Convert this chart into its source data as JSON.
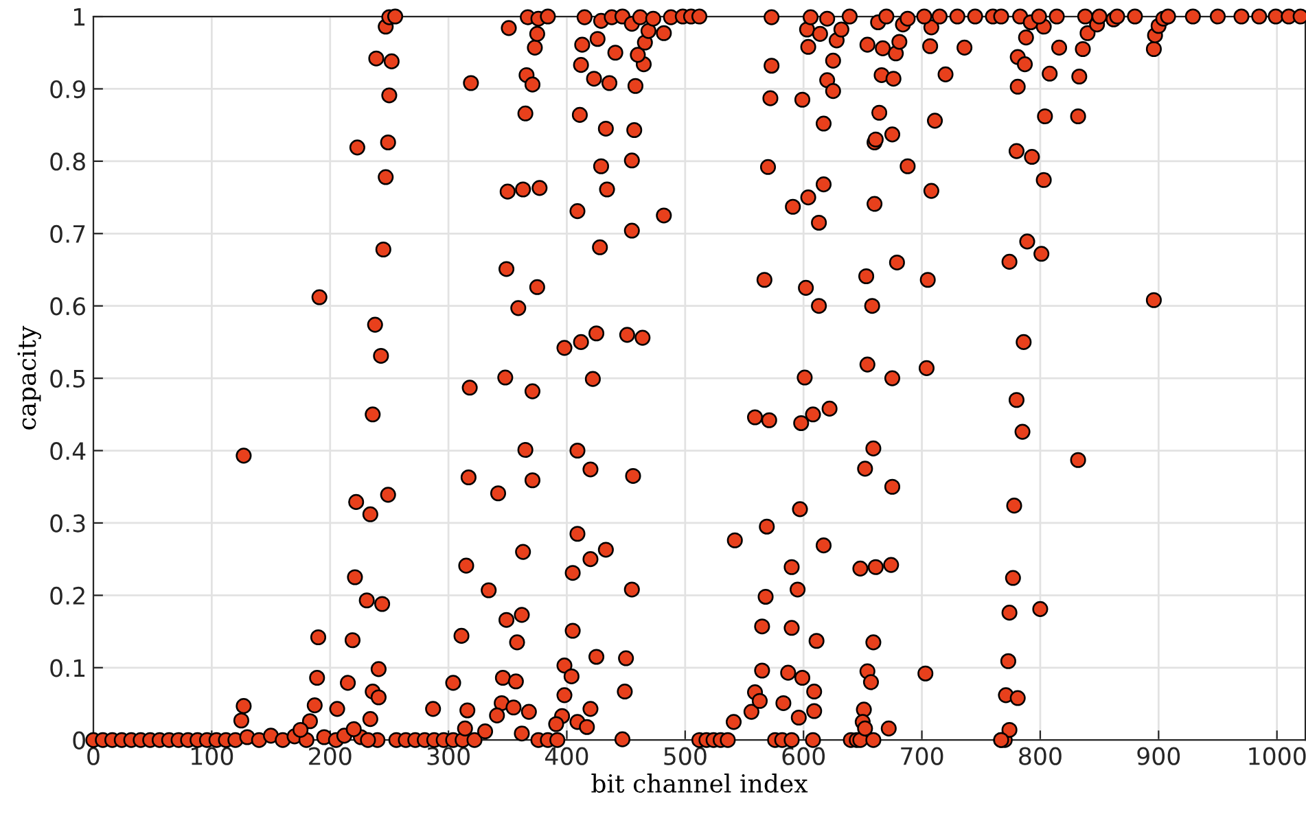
{
  "chart_data": {
    "type": "scatter",
    "xlabel": "bit channel index",
    "ylabel": "capacity",
    "xlim": [
      0,
      1024
    ],
    "ylim": [
      0,
      1
    ],
    "xticks": [
      0,
      100,
      200,
      300,
      400,
      500,
      600,
      700,
      800,
      900,
      1000
    ],
    "yticks": [
      0,
      0.1,
      0.2,
      0.3,
      0.4,
      0.5,
      0.6,
      0.7,
      0.8,
      0.9,
      1
    ],
    "grid": true,
    "marker": "circle",
    "series": [
      {
        "color": "#e8401c",
        "x": [
          0,
          8,
          16,
          24,
          32,
          40,
          48,
          56,
          64,
          72,
          80,
          88,
          96,
          104,
          112,
          120,
          130,
          140,
          150,
          160,
          170,
          180,
          195,
          205,
          212,
          226,
          256,
          264,
          272,
          280,
          288,
          296,
          304,
          312,
          322,
          376,
          384,
          392,
          512,
          518,
          524,
          530,
          536,
          576,
          582,
          590,
          640,
          645,
          648,
          767,
          770,
          127,
          127,
          125,
          191,
          190,
          189,
          187,
          183,
          175,
          223,
          222,
          221,
          219,
          215,
          206,
          220,
          236,
          238,
          243,
          245,
          247,
          249,
          250,
          252,
          239,
          247,
          250,
          255,
          249,
          234,
          231,
          244,
          241,
          236,
          241,
          234,
          240,
          232,
          287,
          304,
          311,
          315,
          317,
          318,
          319,
          316,
          314,
          334,
          342,
          348,
          349,
          350,
          351,
          363,
          377,
          359,
          375,
          365,
          366,
          371,
          373,
          367,
          376,
          384,
          375,
          365,
          371,
          371,
          363,
          362,
          349,
          358,
          346,
          357,
          345,
          355,
          368,
          341,
          362,
          331,
          398,
          412,
          425,
          451,
          464,
          422,
          409,
          420,
          456,
          409,
          420,
          433,
          405,
          455,
          405,
          398,
          404,
          425,
          450,
          449,
          398,
          420,
          396,
          409,
          417,
          447,
          391,
          409,
          428,
          455,
          482,
          429,
          434,
          455,
          411,
          433,
          457,
          412,
          423,
          436,
          458,
          465,
          413,
          426,
          441,
          460,
          466,
          415,
          429,
          438,
          447,
          455,
          462,
          469,
          473,
          482,
          488,
          498,
          505,
          512,
          542,
          541,
          556,
          559,
          563,
          565,
          565,
          568,
          569,
          559,
          571,
          567,
          570,
          572,
          573,
          573,
          583,
          587,
          590,
          590,
          595,
          597,
          598,
          591,
          599,
          601,
          602,
          604,
          608,
          622,
          613,
          613,
          617,
          617,
          599,
          596,
          609,
          609,
          608,
          617,
          611,
          603,
          606,
          614,
          620,
          625,
          628,
          632,
          639,
          620,
          625,
          604,
          654,
          653,
          658,
          659,
          652,
          648,
          661,
          659,
          654,
          657,
          651,
          650,
          659,
          654,
          660,
          660,
          666,
          676,
          664,
          661,
          675,
          688,
          679,
          675,
          675,
          674,
          652,
          672,
          667,
          678,
          681,
          663,
          670,
          684,
          688,
          707,
          720,
          736,
          711,
          708,
          705,
          704,
          703,
          708,
          702,
          715,
          730,
          745,
          760,
          767,
          774,
          780,
          781,
          781,
          787,
          788,
          783,
          792,
          803,
          786,
          780,
          785,
          778,
          777,
          774,
          773,
          771,
          781,
          774,
          767,
          789,
          793,
          803,
          801,
          800,
          804,
          808,
          816,
          799,
          832,
          832,
          833,
          836,
          840,
          848,
          862,
          896,
          896,
          897,
          900,
          904,
          814,
          838,
          850,
          865,
          880,
          908,
          929,
          950,
          970,
          985,
          999,
          1010,
          1020
        ],
        "values": [
          0,
          0,
          0,
          0,
          0,
          0,
          0,
          0,
          0,
          0,
          0,
          0,
          0,
          0,
          0,
          0,
          0.004,
          0,
          0.006,
          0,
          0.005,
          0,
          0.004,
          0,
          0.006,
          0.004,
          0,
          0,
          0,
          0,
          0,
          0,
          0,
          0,
          0,
          0,
          0,
          0,
          0,
          0,
          0,
          0,
          0,
          0,
          0,
          0,
          0,
          0,
          0,
          0,
          0,
          0.393,
          0.047,
          0.027,
          0.612,
          0.142,
          0.086,
          0.048,
          0.026,
          0.014,
          0.819,
          0.329,
          0.225,
          0.138,
          0.079,
          0.043,
          0.015,
          0.45,
          0.574,
          0.531,
          0.678,
          0.778,
          0.826,
          0.891,
          0.938,
          0.942,
          0.986,
          0.999,
          1,
          0.339,
          0.312,
          0.193,
          0.188,
          0.098,
          0.067,
          0.059,
          0.029,
          0,
          0,
          0.043,
          0.079,
          0.144,
          0.241,
          0.363,
          0.487,
          0.908,
          0.041,
          0.016,
          0.207,
          0.341,
          0.501,
          0.651,
          0.758,
          0.984,
          0.761,
          0.763,
          0.597,
          0.626,
          0.866,
          0.919,
          0.906,
          0.957,
          0.999,
          0.997,
          1,
          0.976,
          0.401,
          0.359,
          0.482,
          0.26,
          0.173,
          0.166,
          0.135,
          0.086,
          0.081,
          0.051,
          0.045,
          0.039,
          0.034,
          0.009,
          0.012,
          0.542,
          0.55,
          0.562,
          0.56,
          0.556,
          0.499,
          0.4,
          0.374,
          0.365,
          0.285,
          0.25,
          0.263,
          0.231,
          0.208,
          0.151,
          0.103,
          0.088,
          0.115,
          0.113,
          0.067,
          0.062,
          0.043,
          0.033,
          0.025,
          0.018,
          0.001,
          0.022,
          0.731,
          0.681,
          0.704,
          0.725,
          0.793,
          0.761,
          0.801,
          0.864,
          0.845,
          0.843,
          0.933,
          0.914,
          0.908,
          0.904,
          0.934,
          0.961,
          0.969,
          0.95,
          0.947,
          0.964,
          0.999,
          0.994,
          0.999,
          1,
          0.99,
          0.999,
          0.98,
          0.997,
          0.977,
          0.999,
          1,
          1,
          1,
          0.276,
          0.025,
          0.039,
          0.066,
          0.054,
          0.096,
          0.157,
          0.198,
          0.295,
          0.446,
          0.442,
          0.636,
          0.792,
          0.887,
          0.932,
          0.999,
          0.051,
          0.093,
          0.155,
          0.239,
          0.208,
          0.319,
          0.438,
          0.737,
          0.885,
          0.501,
          0.625,
          0.75,
          0.45,
          0.458,
          0.6,
          0.715,
          0.768,
          0.852,
          0.086,
          0.031,
          0.067,
          0.04,
          0,
          0.269,
          0.137,
          0.982,
          0.999,
          0.976,
          0.997,
          0.939,
          0.967,
          0.982,
          1,
          0.912,
          0.897,
          0.958,
          0.519,
          0.641,
          0.6,
          0.403,
          0.375,
          0.237,
          0.239,
          0.135,
          0.095,
          0.08,
          0.042,
          0.025,
          0,
          0.961,
          0.826,
          0.741,
          0.919,
          0.914,
          0.867,
          0.83,
          0.837,
          0.793,
          0.66,
          0.5,
          0.35,
          0.242,
          0.016,
          0.016,
          0.956,
          0.949,
          0.965,
          0.992,
          1,
          0.989,
          0.997,
          0.959,
          0.92,
          0.957,
          0.856,
          0.759,
          0.636,
          0.514,
          0.092,
          0.985,
          1,
          1,
          1,
          1,
          1,
          1,
          0.661,
          0.814,
          0.903,
          0.944,
          0.934,
          0.971,
          1,
          0.992,
          0.986,
          0.55,
          0.47,
          0.426,
          0.324,
          0.224,
          0.176,
          0.109,
          0.062,
          0.058,
          0.014,
          0,
          0.689,
          0.806,
          0.774,
          0.672,
          0.181,
          0.862,
          0.921,
          0.957,
          1,
          0.387,
          0.862,
          0.917,
          0.955,
          0.977,
          0.989,
          0.996,
          0.608,
          0.955,
          0.974,
          0.987,
          0.997,
          1,
          1,
          1,
          1,
          1,
          1,
          1,
          1,
          1,
          1,
          1,
          1,
          1
        ]
      }
    ]
  }
}
